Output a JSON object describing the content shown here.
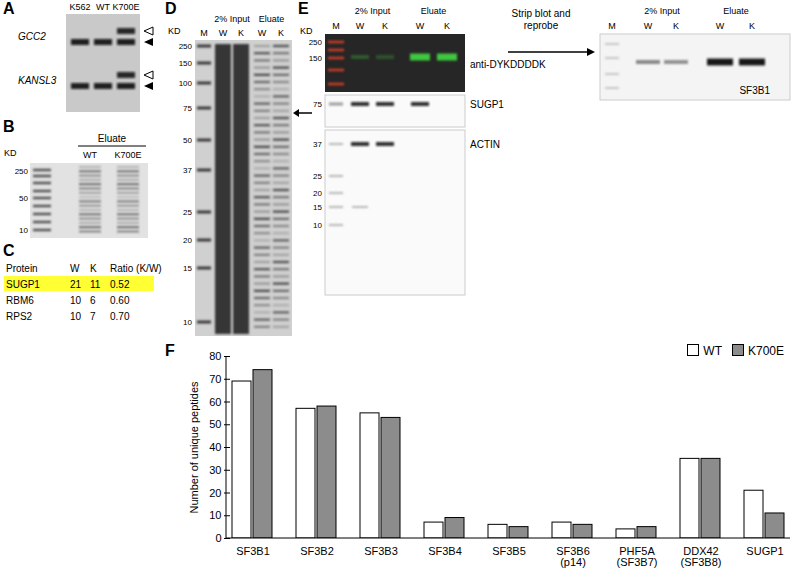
{
  "panel_labels": [
    "A",
    "B",
    "C",
    "D",
    "E",
    "F"
  ],
  "A": {
    "lanes": [
      "K562",
      "WT",
      "K700E"
    ],
    "genes": [
      "GCC2",
      "KANSL3"
    ]
  },
  "B": {
    "unit": "KD",
    "markers": [
      250,
      50,
      10
    ],
    "group": "Eluate",
    "lanes": [
      "WT",
      "K700E"
    ]
  },
  "C": {
    "table": {
      "columns": [
        "Protein",
        "W",
        "K",
        "Ratio (K/W)"
      ],
      "rows": [
        [
          "SUGP1",
          21,
          11,
          "0.52"
        ],
        [
          "RBM6",
          10,
          6,
          "0.60"
        ],
        [
          "RPS2",
          10,
          7,
          "0.70"
        ]
      ],
      "highlight": "SUGP1"
    }
  },
  "D": {
    "unit": "KD",
    "markers": [
      250,
      150,
      100,
      75,
      50,
      37,
      25,
      20,
      15,
      10
    ],
    "groups": [
      "2% Input",
      "Eluate"
    ],
    "lanes": [
      "M",
      "W",
      "K",
      "W",
      "K"
    ]
  },
  "E": {
    "unit": "KD",
    "markers": [
      250,
      150,
      75,
      37,
      25,
      20,
      15,
      10
    ],
    "groups": [
      "2% Input",
      "Eluate"
    ],
    "lanes": [
      "M",
      "W",
      "K",
      "W",
      "K"
    ],
    "blots": [
      "anti-DYKDDDDK",
      "SUGP1",
      "ACTIN"
    ],
    "arrow_label": "Strip blot and reprobe",
    "reprobe": {
      "groups": [
        "2% Input",
        "Eluate"
      ],
      "lanes": [
        "M",
        "W",
        "K",
        "W",
        "K"
      ],
      "blot": "SF3B1"
    }
  },
  "chart_data": {
    "type": "bar",
    "categories": [
      "SF3B1",
      "SF3B2",
      "SF3B3",
      "SF3B4",
      "SF3B5",
      "SF3B6\n(p14)",
      "PHF5A\n(SF3B7)",
      "DDX42\n(SF3B8)",
      "SUGP1"
    ],
    "series": [
      {
        "name": "WT",
        "color": "#ffffff",
        "values": [
          69,
          57,
          55,
          7,
          6,
          7,
          4,
          35,
          21
        ]
      },
      {
        "name": "K700E",
        "color": "#8c8c8c",
        "values": [
          74,
          58,
          53,
          9,
          5,
          6,
          5,
          35,
          11
        ]
      }
    ],
    "y_label": "Number of unique peptides",
    "ylim": [
      0,
      80
    ],
    "yticks": [
      0,
      10,
      20,
      30,
      40,
      50,
      60,
      70,
      80
    ],
    "legend": "top-right",
    "grid": false
  }
}
